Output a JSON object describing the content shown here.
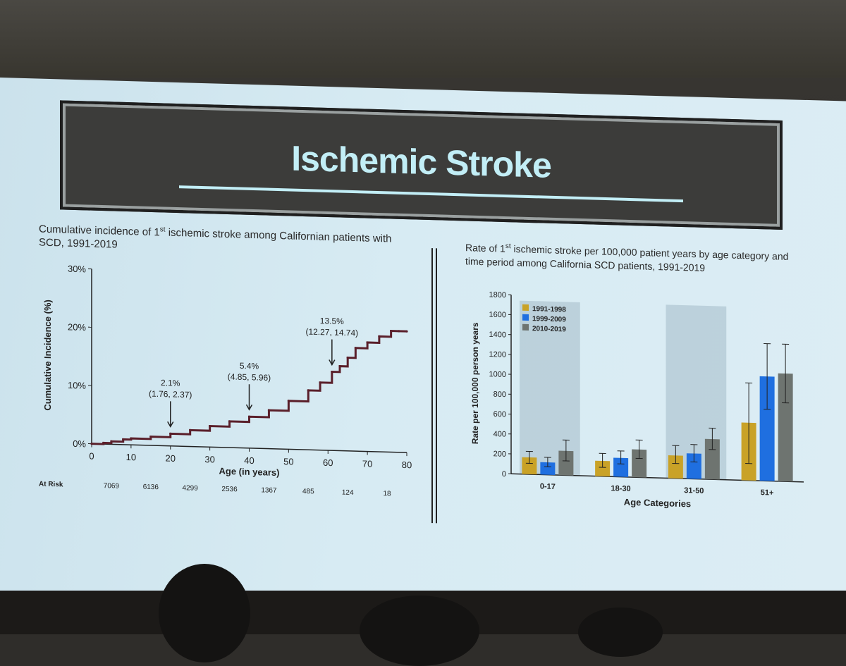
{
  "slide": {
    "title": "Ischemic Stroke"
  },
  "left_caption": {
    "part1": "Cumulative incidence of 1",
    "sup": "st",
    "part2": " ischemic stroke among Californian patients with SCD, 1991-2019"
  },
  "right_caption": {
    "part1": "Rate of 1",
    "sup": "st",
    "part2": " ischemic stroke per 100,000 patient years by age category and time period among California SCD patients, 1991-2019"
  },
  "at_risk": {
    "label": "At Risk",
    "values": [
      "7069",
      "6136",
      "4299",
      "2536",
      "1367",
      "485",
      "124",
      "18"
    ]
  },
  "annotations": [
    {
      "age": 20,
      "pct": "2.1%",
      "ci": "(1.76, 2.37)"
    },
    {
      "age": 40,
      "pct": "5.4%",
      "ci": "(4.85, 5.96)"
    },
    {
      "age": 61,
      "pct": "13.5%",
      "ci": "(12.27, 14.74)"
    }
  ],
  "colors": {
    "curve": "#5a1f2a",
    "series": [
      "#c9a227",
      "#1f6fe0",
      "#6e7470"
    ],
    "band": "#a9bfcc"
  },
  "chart_data": [
    {
      "type": "line",
      "xlabel": "Age (in years)",
      "ylabel": "Cumulative Incidence (%)",
      "xlim": [
        0,
        80
      ],
      "ylim": [
        0,
        30
      ],
      "xticks": [
        0,
        10,
        20,
        30,
        40,
        50,
        60,
        70,
        80
      ],
      "yticks": [
        "0%",
        "10%",
        "20%",
        "30%"
      ],
      "x": [
        0,
        3,
        5,
        8,
        10,
        15,
        20,
        25,
        30,
        35,
        40,
        45,
        50,
        55,
        58,
        61,
        63,
        65,
        67,
        70,
        73,
        76,
        78,
        80
      ],
      "y": [
        0,
        0.2,
        0.5,
        0.9,
        1.1,
        1.5,
        2.1,
        2.8,
        3.6,
        4.5,
        5.4,
        6.6,
        8.3,
        10.2,
        11.6,
        13.5,
        14.5,
        16.0,
        17.7,
        18.7,
        19.8,
        20.8,
        20.8,
        20.8
      ]
    },
    {
      "type": "bar",
      "xlabel": "Age Categories",
      "ylabel": "Rate per 100,000 person years",
      "ylim": [
        0,
        1800
      ],
      "yticks": [
        0,
        200,
        400,
        600,
        800,
        1000,
        1200,
        1400,
        1600,
        1800
      ],
      "categories": [
        "0-17",
        "18-30",
        "31-50",
        "51+"
      ],
      "series": [
        {
          "name": "1991-1998",
          "values": [
            170,
            155,
            230,
            580
          ],
          "err_low": [
            110,
            90,
            150,
            170
          ],
          "err_high": [
            230,
            230,
            330,
            980
          ]
        },
        {
          "name": "1999-2009",
          "values": [
            125,
            190,
            255,
            1050
          ],
          "err_low": [
            80,
            130,
            170,
            720
          ],
          "err_high": [
            175,
            260,
            345,
            1380
          ]
        },
        {
          "name": "2010-2019",
          "values": [
            245,
            280,
            405,
            1085
          ],
          "err_low": [
            145,
            190,
            300,
            790
          ],
          "err_high": [
            355,
            375,
            515,
            1380
          ]
        }
      ],
      "legend": "top-left"
    }
  ]
}
